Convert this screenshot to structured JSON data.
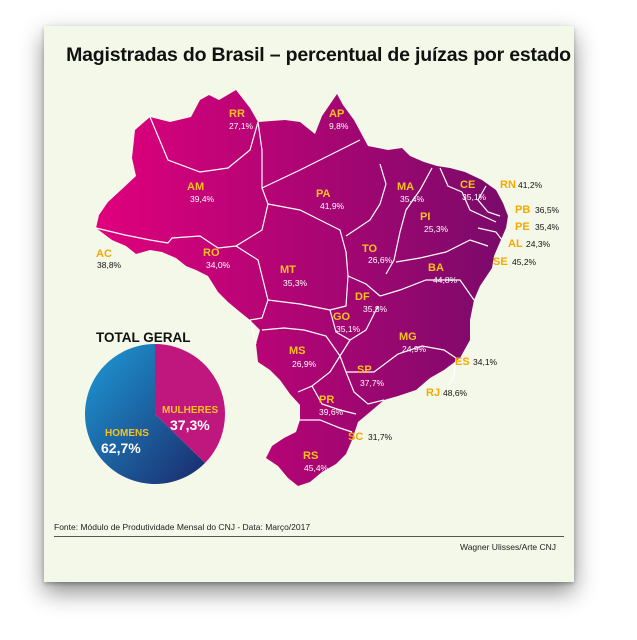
{
  "title": "Magistradas do Brasil – percentual de juízas por estado",
  "total": {
    "heading": "TOTAL GERAL",
    "women_label": "MULHERES",
    "women_value": "37,3%",
    "men_label": "HOMENS",
    "men_value": "62,7%",
    "women_fraction": 0.373
  },
  "states": [
    {
      "code": "RR",
      "value": "27,1%"
    },
    {
      "code": "AP",
      "value": "9,8%"
    },
    {
      "code": "AM",
      "value": "39,4%"
    },
    {
      "code": "PA",
      "value": "41,9%"
    },
    {
      "code": "MA",
      "value": "35,4%"
    },
    {
      "code": "CE",
      "value": "35,1%"
    },
    {
      "code": "PI",
      "value": "25,3%"
    },
    {
      "code": "AC",
      "value": "38,8%"
    },
    {
      "code": "RO",
      "value": "34,0%"
    },
    {
      "code": "TO",
      "value": "26,6%"
    },
    {
      "code": "MT",
      "value": "35,3%"
    },
    {
      "code": "BA",
      "value": "44,8%"
    },
    {
      "code": "DF",
      "value": "35,8%"
    },
    {
      "code": "GO",
      "value": "35,1%"
    },
    {
      "code": "MG",
      "value": "24,9%"
    },
    {
      "code": "MS",
      "value": "26,9%"
    },
    {
      "code": "SP",
      "value": "37,7%"
    },
    {
      "code": "PR",
      "value": "39,6%"
    },
    {
      "code": "RS",
      "value": "45,4%"
    },
    {
      "code": "SC",
      "value": "31,7%"
    },
    {
      "code": "RN",
      "value": "41,2%"
    },
    {
      "code": "PB",
      "value": "36,5%"
    },
    {
      "code": "PE",
      "value": "35,4%"
    },
    {
      "code": "AL",
      "value": "24,3%"
    },
    {
      "code": "SE",
      "value": "45,2%"
    },
    {
      "code": "ES",
      "value": "34,1%"
    },
    {
      "code": "RJ",
      "value": "48,6%"
    }
  ],
  "source": "Fonte: Módulo de Produtividade Mensal do CNJ - Data: Março/2017",
  "credit": "Wagner Ulisses/Arte CNJ",
  "colors": {
    "map_left": "#e0007d",
    "map_right": "#7a0a6a",
    "label_code_inside": "#f7c21c",
    "label_code_outside": "#f2a900",
    "men_dark": "#1a2a6c",
    "men_light": "#1e9bd7",
    "women": "#c0177f"
  }
}
